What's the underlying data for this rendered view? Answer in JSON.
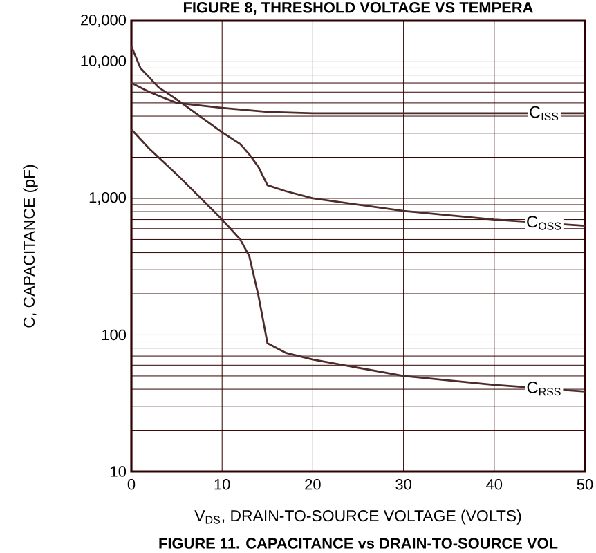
{
  "chart_data": {
    "type": "line",
    "title": "FIGURE 11. CAPACITANCE vs DRAIN-TO-SOURCE VOL",
    "xlabel": "V$_{DS}$, DRAIN-TO-SOURCE VOLTAGE (VOLTS)",
    "ylabel": "C, CAPACITANCE (pF)",
    "log": true,
    "grid": true,
    "marker": "none",
    "line_style": "solid",
    "xlim": [
      0,
      50
    ],
    "xticks": [
      0,
      10,
      20,
      30,
      40,
      50
    ],
    "ylim": [
      10,
      20000
    ],
    "yticks": [
      {
        "value": 10,
        "label": "10"
      },
      {
        "value": 100,
        "label": "100"
      },
      {
        "value": 1000,
        "label": "1,000"
      },
      {
        "value": 10000,
        "label": "10,000"
      },
      {
        "value": 20000,
        "label": "20,000"
      }
    ],
    "series": [
      {
        "name": "C$_{ISS}$",
        "color": "#4d2b2b",
        "x": [
          0,
          2,
          5,
          10,
          15,
          20,
          30,
          40,
          50
        ],
        "values": [
          7000,
          6000,
          5000,
          4600,
          4300,
          4200,
          4200,
          4200,
          4200
        ]
      },
      {
        "name": "C$_{OSS}$",
        "color": "#4d2b2b",
        "x": [
          0,
          1,
          3,
          5,
          8,
          10,
          12,
          13,
          14,
          15,
          17,
          20,
          30,
          40,
          50
        ],
        "values": [
          13000,
          9000,
          6500,
          5300,
          3800,
          3050,
          2500,
          2100,
          1700,
          1250,
          1130,
          1000,
          810,
          700,
          630
        ]
      },
      {
        "name": "C$_{RSS}$",
        "color": "#4d2b2b",
        "x": [
          0,
          2,
          5,
          8,
          10,
          12,
          13,
          14,
          15,
          17,
          20,
          30,
          40,
          50
        ],
        "values": [
          3200,
          2300,
          1500,
          950,
          700,
          500,
          377,
          195,
          87,
          74,
          66,
          50,
          43,
          38.5
        ]
      }
    ],
    "annotations": [
      "FIGURE 8, THRESHOLD VOLTAGE VS TEMPERA"
    ]
  }
}
